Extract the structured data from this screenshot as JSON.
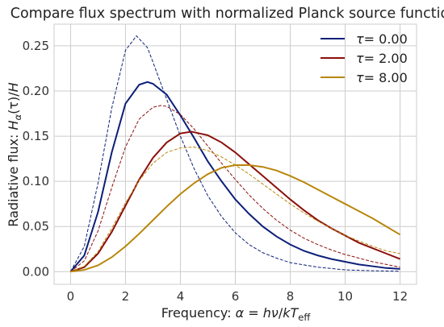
{
  "chart_data": {
    "type": "line",
    "title": "Compare flux spectrum with normalized Planck source function",
    "xlabel_parts": {
      "pre": "Frequency: ",
      "alpha": "α",
      "eq": " = ",
      "h": "h",
      "nu": "ν",
      "slash": "/",
      "k": "k",
      "T": "T",
      "sub": "eff"
    },
    "ylabel_parts": {
      "pre": "Radiative flux: ",
      "H": "H",
      "sub": "α",
      "arg": "(τ)/",
      "H2": "H"
    },
    "xlim": [
      -0.6,
      12.6
    ],
    "ylim": [
      -0.014,
      0.274
    ],
    "xticks": [
      0,
      2,
      4,
      6,
      8,
      10,
      12
    ],
    "xtick_labels": [
      "0",
      "2",
      "4",
      "6",
      "8",
      "10",
      "12"
    ],
    "yticks": [
      0.0,
      0.05,
      0.1,
      0.15,
      0.2,
      0.25
    ],
    "ytick_labels": [
      "0.00",
      "0.05",
      "0.10",
      "0.15",
      "0.20",
      "0.25"
    ],
    "grid": true,
    "legend_position": "top-right",
    "series": [
      {
        "name": "τ = 0.00",
        "legend_sym": "τ",
        "legend_val": "= 0.00",
        "color": "#0d1f78",
        "flux": [
          [
            0,
            0
          ],
          [
            0.5,
            0.018
          ],
          [
            1,
            0.066
          ],
          [
            1.5,
            0.132
          ],
          [
            2,
            0.186
          ],
          [
            2.5,
            0.207
          ],
          [
            2.8,
            0.21
          ],
          [
            3,
            0.208
          ],
          [
            3.5,
            0.196
          ],
          [
            4,
            0.173
          ],
          [
            4.5,
            0.148
          ],
          [
            5,
            0.122
          ],
          [
            5.5,
            0.1
          ],
          [
            6,
            0.08
          ],
          [
            6.5,
            0.064
          ],
          [
            7,
            0.05
          ],
          [
            7.5,
            0.039
          ],
          [
            8,
            0.03
          ],
          [
            8.5,
            0.023
          ],
          [
            9,
            0.018
          ],
          [
            9.5,
            0.014
          ],
          [
            10,
            0.011
          ],
          [
            10.5,
            0.008
          ],
          [
            11,
            0.006
          ],
          [
            11.5,
            0.004
          ],
          [
            12,
            0.003
          ]
        ],
        "planck": [
          [
            0,
            0
          ],
          [
            0.5,
            0.028
          ],
          [
            1,
            0.098
          ],
          [
            1.5,
            0.181
          ],
          [
            2,
            0.245
          ],
          [
            2.4,
            0.261
          ],
          [
            2.8,
            0.248
          ],
          [
            3,
            0.232
          ],
          [
            3.5,
            0.191
          ],
          [
            4,
            0.15
          ],
          [
            4.5,
            0.114
          ],
          [
            5,
            0.084
          ],
          [
            5.5,
            0.061
          ],
          [
            6,
            0.043
          ],
          [
            6.5,
            0.03
          ],
          [
            7,
            0.021
          ],
          [
            7.5,
            0.015
          ],
          [
            8,
            0.01
          ],
          [
            9,
            0.005
          ],
          [
            10,
            0.002
          ],
          [
            11,
            0.001
          ],
          [
            12,
            0.0005
          ]
        ]
      },
      {
        "name": "τ = 2.00",
        "legend_sym": "τ",
        "legend_val": "= 2.00",
        "color": "#8b0f0b",
        "flux": [
          [
            0,
            0
          ],
          [
            0.5,
            0.005
          ],
          [
            1,
            0.02
          ],
          [
            1.5,
            0.044
          ],
          [
            2,
            0.073
          ],
          [
            2.5,
            0.102
          ],
          [
            3,
            0.126
          ],
          [
            3.5,
            0.143
          ],
          [
            4,
            0.153
          ],
          [
            4.4,
            0.155
          ],
          [
            5,
            0.151
          ],
          [
            5.5,
            0.143
          ],
          [
            6,
            0.132
          ],
          [
            6.5,
            0.119
          ],
          [
            7,
            0.106
          ],
          [
            7.5,
            0.093
          ],
          [
            8,
            0.08
          ],
          [
            8.5,
            0.068
          ],
          [
            9,
            0.057
          ],
          [
            9.5,
            0.048
          ],
          [
            10,
            0.04
          ],
          [
            10.5,
            0.032
          ],
          [
            11,
            0.026
          ],
          [
            11.5,
            0.02
          ],
          [
            12,
            0.014
          ]
        ],
        "planck": [
          [
            0,
            0
          ],
          [
            0.5,
            0.012
          ],
          [
            1,
            0.045
          ],
          [
            1.5,
            0.093
          ],
          [
            2,
            0.138
          ],
          [
            2.5,
            0.169
          ],
          [
            3,
            0.182
          ],
          [
            3.3,
            0.184
          ],
          [
            3.5,
            0.183
          ],
          [
            4,
            0.174
          ],
          [
            4.5,
            0.158
          ],
          [
            5,
            0.139
          ],
          [
            5.5,
            0.12
          ],
          [
            6,
            0.102
          ],
          [
            6.5,
            0.085
          ],
          [
            7,
            0.07
          ],
          [
            7.5,
            0.057
          ],
          [
            8,
            0.046
          ],
          [
            8.5,
            0.037
          ],
          [
            9,
            0.03
          ],
          [
            9.5,
            0.024
          ],
          [
            10,
            0.019
          ],
          [
            10.5,
            0.015
          ],
          [
            11,
            0.011
          ],
          [
            11.5,
            0.008
          ],
          [
            12,
            0.005
          ]
        ]
      },
      {
        "name": "τ = 8.00",
        "legend_sym": "τ",
        "legend_val": "= 8.00",
        "color": "#b8860b",
        "flux": [
          [
            0,
            0
          ],
          [
            0.5,
            0.002
          ],
          [
            1,
            0.007
          ],
          [
            1.5,
            0.016
          ],
          [
            2,
            0.028
          ],
          [
            2.5,
            0.042
          ],
          [
            3,
            0.057
          ],
          [
            3.5,
            0.072
          ],
          [
            4,
            0.086
          ],
          [
            4.5,
            0.098
          ],
          [
            5,
            0.108
          ],
          [
            5.5,
            0.115
          ],
          [
            6,
            0.118
          ],
          [
            6.5,
            0.118
          ],
          [
            7,
            0.116
          ],
          [
            7.5,
            0.112
          ],
          [
            8,
            0.106
          ],
          [
            8.5,
            0.099
          ],
          [
            9,
            0.091
          ],
          [
            9.5,
            0.083
          ],
          [
            10,
            0.075
          ],
          [
            10.5,
            0.067
          ],
          [
            11,
            0.059
          ],
          [
            11.5,
            0.05
          ],
          [
            12,
            0.041
          ]
        ],
        "planck": [
          [
            0,
            0
          ],
          [
            0.5,
            0.006
          ],
          [
            1,
            0.022
          ],
          [
            1.5,
            0.048
          ],
          [
            2,
            0.076
          ],
          [
            2.5,
            0.101
          ],
          [
            3,
            0.12
          ],
          [
            3.5,
            0.132
          ],
          [
            4,
            0.137
          ],
          [
            4.5,
            0.138
          ],
          [
            5,
            0.134
          ],
          [
            5.5,
            0.127
          ],
          [
            6,
            0.118
          ],
          [
            6.5,
            0.108
          ],
          [
            7,
            0.097
          ],
          [
            7.5,
            0.086
          ],
          [
            8,
            0.075
          ],
          [
            8.5,
            0.065
          ],
          [
            9,
            0.056
          ],
          [
            9.5,
            0.048
          ],
          [
            10,
            0.04
          ],
          [
            10.5,
            0.034
          ],
          [
            11,
            0.028
          ],
          [
            11.5,
            0.023
          ],
          [
            12,
            0.02
          ]
        ]
      }
    ]
  }
}
